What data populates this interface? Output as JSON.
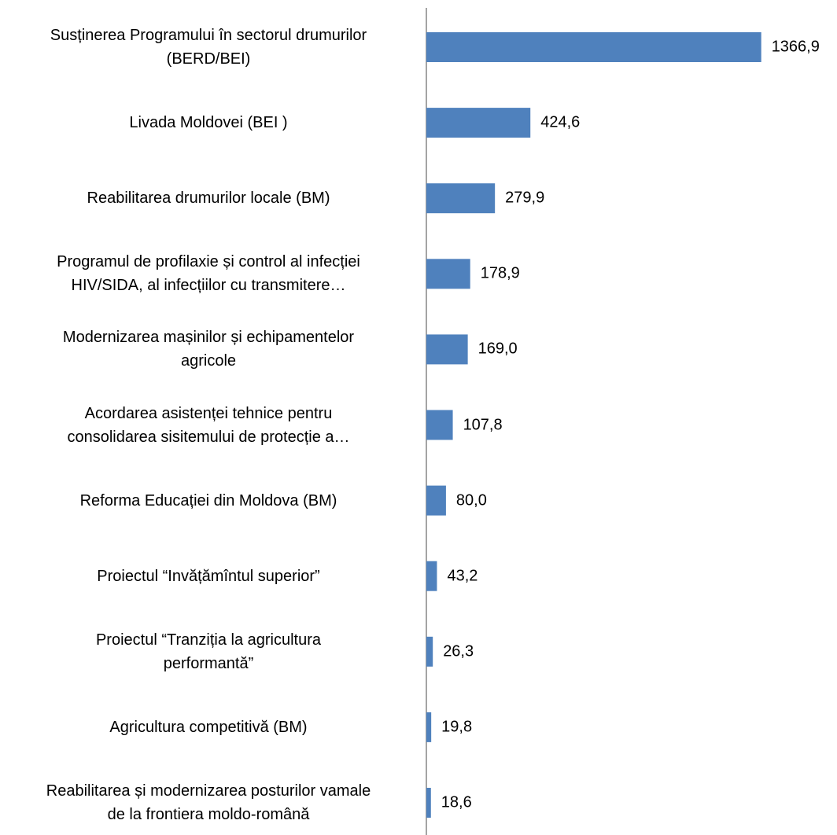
{
  "chart_data": {
    "type": "barh",
    "categories": [
      "Susținerea Programului în sectorul drumurilor\n(BERD/BEI)",
      "Livada Moldovei (BEI )",
      "Reabilitarea drumurilor locale (BM)",
      "Programul de profilaxie și control al infecției\nHIV/SIDA, al infecțiilor cu transmitere…",
      "Modernizarea mașinilor și echipamentelor\nagricole",
      "Acordarea asistenței tehnice pentru\nconsolidarea sisitemului de protecție a…",
      "Reforma Educației din Moldova  (BM)",
      "Proiectul “Invățămîntul superior”",
      "Proiectul “Tranziția la agricultura\nperformantă”",
      "Agricultura competitivă (BM)",
      "Reabilitarea și modernizarea posturilor vamale\nde la frontiera moldo-română"
    ],
    "values": [
      1366.9,
      424.6,
      279.9,
      178.9,
      169.0,
      107.8,
      80.0,
      43.2,
      26.3,
      19.8,
      18.6
    ],
    "value_labels": [
      "1366,9",
      "424,6",
      "279,9",
      "178,9",
      "169,0",
      "107,8",
      "80,0",
      "43,2",
      "26,3",
      "19,8",
      "18,6"
    ],
    "color": "#4f81bd",
    "xlim": [
      0,
      1400
    ]
  }
}
